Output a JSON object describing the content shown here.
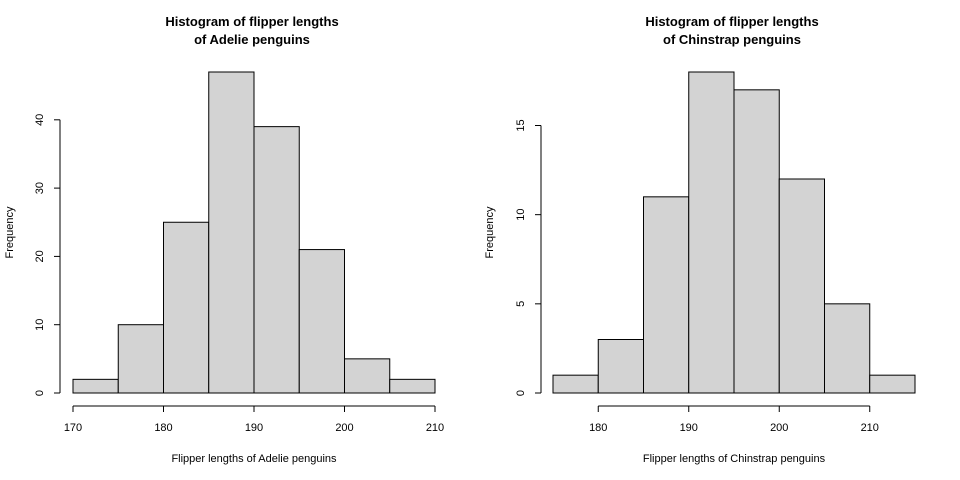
{
  "chart_data": [
    {
      "type": "bar",
      "title_lines": [
        "Histogram of flipper lengths",
        "of Adelie penguins"
      ],
      "xlabel": "Flipper lengths of Adelie penguins",
      "ylabel": "Frequency",
      "bins": [
        [
          170,
          175
        ],
        [
          175,
          180
        ],
        [
          180,
          185
        ],
        [
          185,
          190
        ],
        [
          190,
          195
        ],
        [
          195,
          200
        ],
        [
          200,
          205
        ],
        [
          205,
          210
        ]
      ],
      "values": [
        2,
        10,
        25,
        47,
        39,
        21,
        5,
        2
      ],
      "xticks": [
        170,
        180,
        190,
        200,
        210
      ],
      "yticks": [
        0,
        10,
        20,
        30,
        40
      ],
      "xlim": [
        170,
        210
      ],
      "ylim": [
        0,
        47
      ],
      "bar_color": "#d3d3d3",
      "grid": false
    },
    {
      "type": "bar",
      "title_lines": [
        "Histogram of flipper lengths",
        "of Chinstrap penguins"
      ],
      "xlabel": "Flipper lengths of Chinstrap penguins",
      "ylabel": "Frequency",
      "bins": [
        [
          175,
          180
        ],
        [
          180,
          185
        ],
        [
          185,
          190
        ],
        [
          190,
          195
        ],
        [
          195,
          200
        ],
        [
          200,
          205
        ],
        [
          205,
          210
        ],
        [
          210,
          215
        ]
      ],
      "values": [
        1,
        3,
        11,
        18,
        17,
        12,
        5,
        1
      ],
      "xticks": [
        180,
        190,
        200,
        210
      ],
      "yticks": [
        0,
        5,
        10,
        15
      ],
      "xlim": [
        175,
        215
      ],
      "ylim": [
        0,
        18
      ],
      "bar_color": "#d3d3d3",
      "grid": false
    }
  ]
}
